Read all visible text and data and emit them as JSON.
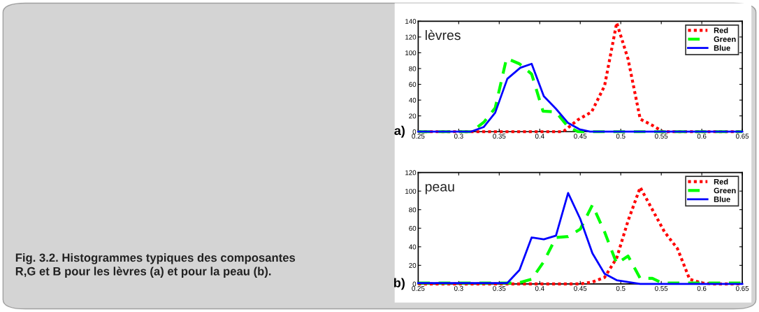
{
  "chart_data": [
    {
      "type": "line",
      "title": "lèvres",
      "annotations": [
        "a)",
        "Fig. 3.2. Histogrammes typiques des composantes R,G et B pour les lèvres (a) et pour la peau (b)."
      ],
      "xlim": [
        0.25,
        0.65
      ],
      "xticks": [
        0.25,
        0.3,
        0.35,
        0.4,
        0.45,
        0.5,
        0.55,
        0.6,
        0.65
      ],
      "ylim": [
        0,
        140
      ],
      "yticks": [
        0,
        20,
        40,
        60,
        80,
        100,
        120,
        140
      ],
      "grid": false,
      "legend": "top right",
      "marker": "none",
      "series": [
        {
          "name": "Red",
          "color": "#ff0000",
          "line_style": "dotted",
          "x": [
            0.25,
            0.429,
            0.447,
            0.464,
            0.48,
            0.495,
            0.509,
            0.524,
            0.539,
            0.552,
            0.65
          ],
          "values": [
            0,
            0,
            15,
            25,
            58,
            138,
            92,
            16,
            8,
            0,
            0
          ]
        },
        {
          "name": "Green",
          "color": "#00ff00",
          "line_style": "dashed",
          "x": [
            0.25,
            0.316,
            0.331,
            0.345,
            0.359,
            0.375,
            0.39,
            0.404,
            0.42,
            0.435,
            0.447,
            0.65
          ],
          "values": [
            0,
            0,
            12,
            30,
            93,
            86,
            73,
            26,
            25,
            6,
            0,
            0
          ]
        },
        {
          "name": "Blue",
          "color": "#0000ff",
          "line_style": "solid",
          "x": [
            0.25,
            0.315,
            0.331,
            0.345,
            0.36,
            0.376,
            0.39,
            0.405,
            0.42,
            0.435,
            0.449,
            0.462,
            0.65
          ],
          "values": [
            0,
            0,
            6,
            24,
            67,
            81,
            86,
            45,
            29,
            11,
            3,
            0,
            0
          ]
        }
      ]
    },
    {
      "type": "line",
      "title": "peau",
      "annotations": [
        "b)"
      ],
      "xlim": [
        0.25,
        0.65
      ],
      "xticks": [
        0.25,
        0.3,
        0.35,
        0.4,
        0.45,
        0.5,
        0.55,
        0.6,
        0.65
      ],
      "ylim": [
        0,
        120
      ],
      "yticks": [
        0,
        20,
        40,
        60,
        80,
        100,
        120
      ],
      "grid": false,
      "legend": "top right",
      "marker": "none",
      "series": [
        {
          "name": "Red",
          "color": "#ff0000",
          "line_style": "dotted",
          "x": [
            0.25,
            0.45,
            0.465,
            0.48,
            0.495,
            0.509,
            0.524,
            0.539,
            0.554,
            0.57,
            0.585,
            0.6,
            0.614,
            0.65
          ],
          "values": [
            0,
            0,
            2,
            7,
            28,
            68,
            104,
            80,
            56,
            38,
            5,
            1,
            0,
            0
          ]
        },
        {
          "name": "Green",
          "color": "#00ff00",
          "line_style": "dashed",
          "x": [
            0.25,
            0.373,
            0.39,
            0.405,
            0.42,
            0.435,
            0.45,
            0.465,
            0.48,
            0.495,
            0.509,
            0.524,
            0.539,
            0.551,
            0.65
          ],
          "values": [
            1,
            1,
            5,
            24,
            50,
            51,
            59,
            85,
            56,
            22,
            30,
            6,
            6,
            1,
            1
          ]
        },
        {
          "name": "Blue",
          "color": "#0000ff",
          "line_style": "solid",
          "x": [
            0.25,
            0.36,
            0.375,
            0.39,
            0.405,
            0.42,
            0.435,
            0.45,
            0.465,
            0.48,
            0.495,
            0.524,
            0.65
          ],
          "values": [
            1,
            1,
            15,
            50,
            48,
            52,
            98,
            70,
            33,
            11,
            4,
            0,
            0
          ]
        }
      ]
    }
  ]
}
